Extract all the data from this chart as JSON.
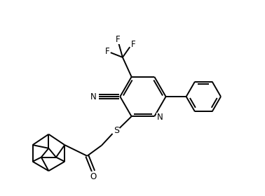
{
  "background_color": "#ffffff",
  "line_color": "#000000",
  "line_width": 1.4,
  "figure_size": [
    3.78,
    2.8
  ],
  "dpi": 100,
  "xlim": [
    0,
    9.45
  ],
  "ylim": [
    0,
    7.0
  ]
}
